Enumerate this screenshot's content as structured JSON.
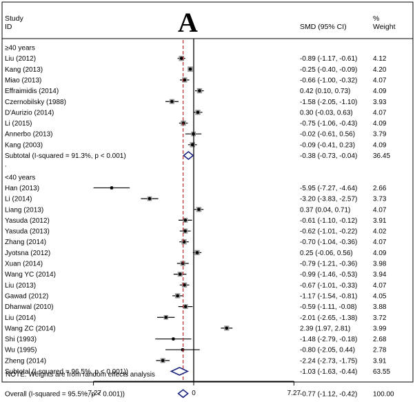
{
  "panel_label": "A",
  "header": {
    "study": "Study",
    "id": "ID",
    "smd": "SMD (95% CI)",
    "pct": "%",
    "weight": "Weight"
  },
  "note": "NOTE: Weights are from random effects analysis",
  "chart_data": {
    "type": "forest",
    "title": "A",
    "x_ticks": [
      -7.27,
      0,
      7.27
    ],
    "x_tick_labels": [
      "-7.27",
      "0",
      "7.27"
    ],
    "xlim": [
      -7.27,
      7.27
    ],
    "null_line": 0,
    "overall_line": -0.77,
    "colors": {
      "line": "#000000",
      "diamond": "#1a237e",
      "overall_line": "#b22222",
      "box": "#9a9a9a"
    },
    "groups": [
      {
        "label": "≥40 years",
        "studies": [
          {
            "name": "Liu (2012)",
            "est": -0.89,
            "lo": -1.17,
            "hi": -0.61,
            "ci": "-0.89 (-1.17, -0.61)",
            "weight": "4.12"
          },
          {
            "name": "Kang (2013)",
            "est": -0.25,
            "lo": -0.4,
            "hi": -0.09,
            "ci": "-0.25 (-0.40, -0.09)",
            "weight": "4.20"
          },
          {
            "name": "Miao (2013)",
            "est": -0.66,
            "lo": -1.0,
            "hi": -0.32,
            "ci": "-0.66 (-1.00, -0.32)",
            "weight": "4.07"
          },
          {
            "name": "Effraimidis (2014)",
            "est": 0.42,
            "lo": 0.1,
            "hi": 0.73,
            "ci": "0.42 (0.10, 0.73)",
            "weight": "4.09"
          },
          {
            "name": "Czernobilsky (1988)",
            "est": -1.58,
            "lo": -2.05,
            "hi": -1.1,
            "ci": "-1.58 (-2.05, -1.10)",
            "weight": "3.93"
          },
          {
            "name": "D'Aurizio (2014)",
            "est": 0.3,
            "lo": -0.03,
            "hi": 0.63,
            "ci": "0.30 (-0.03, 0.63)",
            "weight": "4.07"
          },
          {
            "name": "Li (2015)",
            "est": -0.75,
            "lo": -1.06,
            "hi": -0.43,
            "ci": "-0.75 (-1.06, -0.43)",
            "weight": "4.09"
          },
          {
            "name": "Annerbo (2013)",
            "est": -0.02,
            "lo": -0.61,
            "hi": 0.56,
            "ci": "-0.02 (-0.61, 0.56)",
            "weight": "3.79"
          },
          {
            "name": "Kang (2003)",
            "est": -0.09,
            "lo": -0.41,
            "hi": 0.23,
            "ci": "-0.09 (-0.41, 0.23)",
            "weight": "4.09"
          }
        ],
        "subtotal": {
          "label": "Subtotal  (I-squared = 91.3%, p < 0.001)",
          "est": -0.38,
          "lo": -0.73,
          "hi": -0.04,
          "ci": "-0.38 (-0.73, -0.04)",
          "weight": "36.45"
        }
      },
      {
        "label": "<40 years",
        "studies": [
          {
            "name": "Han (2013)",
            "est": -5.95,
            "lo": -7.27,
            "hi": -4.64,
            "ci": "-5.95 (-7.27, -4.64)",
            "weight": "2.66"
          },
          {
            "name": "Li (2014)",
            "est": -3.2,
            "lo": -3.83,
            "hi": -2.57,
            "ci": "-3.20 (-3.83, -2.57)",
            "weight": "3.73"
          },
          {
            "name": "Liang (2013)",
            "est": 0.37,
            "lo": 0.04,
            "hi": 0.71,
            "ci": "0.37 (0.04, 0.71)",
            "weight": "4.07"
          },
          {
            "name": "Yasuda (2012)",
            "est": -0.61,
            "lo": -1.1,
            "hi": -0.12,
            "ci": "-0.61 (-1.10, -0.12)",
            "weight": "3.91"
          },
          {
            "name": "Yasuda (2013)",
            "est": -0.62,
            "lo": -1.01,
            "hi": -0.22,
            "ci": "-0.62 (-1.01, -0.22)",
            "weight": "4.02"
          },
          {
            "name": "Zhang (2014)",
            "est": -0.7,
            "lo": -1.04,
            "hi": -0.36,
            "ci": "-0.70 (-1.04, -0.36)",
            "weight": "4.07"
          },
          {
            "name": "Jyotsna (2012)",
            "est": 0.25,
            "lo": -0.06,
            "hi": 0.56,
            "ci": "0.25 (-0.06, 0.56)",
            "weight": "4.09"
          },
          {
            "name": "Xuan (2014)",
            "est": -0.79,
            "lo": -1.21,
            "hi": -0.36,
            "ci": "-0.79 (-1.21, -0.36)",
            "weight": "3.98"
          },
          {
            "name": "Wang YC (2014)",
            "est": -0.99,
            "lo": -1.46,
            "hi": -0.53,
            "ci": "-0.99 (-1.46, -0.53)",
            "weight": "3.94"
          },
          {
            "name": "Liu (2013)",
            "est": -0.67,
            "lo": -1.01,
            "hi": -0.33,
            "ci": "-0.67 (-1.01, -0.33)",
            "weight": "4.07"
          },
          {
            "name": "Gawad (2012)",
            "est": -1.17,
            "lo": -1.54,
            "hi": -0.81,
            "ci": "-1.17 (-1.54, -0.81)",
            "weight": "4.05"
          },
          {
            "name": "Dhanwal (2010)",
            "est": -0.59,
            "lo": -1.11,
            "hi": -0.08,
            "ci": "-0.59 (-1.11, -0.08)",
            "weight": "3.88"
          },
          {
            "name": "Liu (2014)",
            "est": -2.01,
            "lo": -2.65,
            "hi": -1.38,
            "ci": "-2.01 (-2.65, -1.38)",
            "weight": "3.72"
          },
          {
            "name": "Wang ZC (2014)",
            "est": 2.39,
            "lo": 1.97,
            "hi": 2.81,
            "ci": "2.39 (1.97, 2.81)",
            "weight": "3.99"
          },
          {
            "name": "Shi (1993)",
            "est": -1.48,
            "lo": -2.79,
            "hi": -0.18,
            "ci": "-1.48 (-2.79, -0.18)",
            "weight": "2.68"
          },
          {
            "name": "Wu (1995)",
            "est": -0.8,
            "lo": -2.05,
            "hi": 0.44,
            "ci": "-0.80 (-2.05, 0.44)",
            "weight": "2.78"
          },
          {
            "name": "Zheng (2014)",
            "est": -2.24,
            "lo": -2.73,
            "hi": -1.75,
            "ci": "-2.24 (-2.73, -1.75)",
            "weight": "3.91"
          }
        ],
        "subtotal": {
          "label": "Subtotal  (I-squared = 96.5%, p < 0.001))",
          "est": -1.03,
          "lo": -1.63,
          "hi": -0.44,
          "ci": "-1.03 (-1.63, -0.44)",
          "weight": "63.55"
        }
      }
    ],
    "overall": {
      "label": "Overall  (I-squared = 95.5%, p < 0.001))",
      "est": -0.77,
      "lo": -1.12,
      "hi": -0.42,
      "ci": "-0.77 (-1.12, -0.42)",
      "weight": "100.00"
    }
  }
}
